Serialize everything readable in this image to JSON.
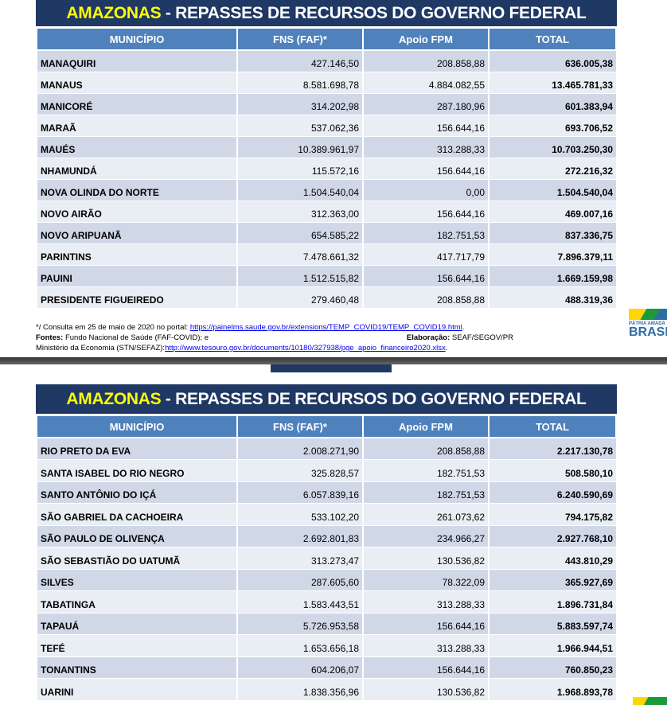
{
  "title_state": "AMAZONAS",
  "title_rest": " - REPASSES DE RECURSOS DO GOVERNO FEDERAL",
  "columns": [
    "MUNICÍPIO",
    "FNS (FAF)*",
    "Apoio FPM",
    "TOTAL"
  ],
  "table1": [
    [
      "MANAQUIRI",
      "427.146,50",
      "208.858,88",
      "636.005,38"
    ],
    [
      "MANAUS",
      "8.581.698,78",
      "4.884.082,55",
      "13.465.781,33"
    ],
    [
      "MANICORÉ",
      "314.202,98",
      "287.180,96",
      "601.383,94"
    ],
    [
      "MARAÃ",
      "537.062,36",
      "156.644,16",
      "693.706,52"
    ],
    [
      "MAUÉS",
      "10.389.961,97",
      "313.288,33",
      "10.703.250,30"
    ],
    [
      "NHAMUNDÁ",
      "115.572,16",
      "156.644,16",
      "272.216,32"
    ],
    [
      "NOVA OLINDA DO NORTE",
      "1.504.540,04",
      "0,00",
      "1.504.540,04"
    ],
    [
      "NOVO AIRÃO",
      "312.363,00",
      "156.644,16",
      "469.007,16"
    ],
    [
      "NOVO ARIPUANÃ",
      "654.585,22",
      "182.751,53",
      "837.336,75"
    ],
    [
      "PARINTINS",
      "7.478.661,32",
      "417.717,79",
      "7.896.379,11"
    ],
    [
      "PAUINI",
      "1.512.515,82",
      "156.644,16",
      "1.669.159,98"
    ],
    [
      "PRESIDENTE FIGUEIREDO",
      "279.460,48",
      "208.858,88",
      "488.319,36"
    ]
  ],
  "table2": [
    [
      "RIO PRETO DA EVA",
      "2.008.271,90",
      "208.858,88",
      "2.217.130,78"
    ],
    [
      "SANTA ISABEL DO RIO NEGRO",
      "325.828,57",
      "182.751,53",
      "508.580,10"
    ],
    [
      "SANTO ANTÔNIO DO IÇÁ",
      "6.057.839,16",
      "182.751,53",
      "6.240.590,69"
    ],
    [
      "SÃO GABRIEL DA CACHOEIRA",
      "533.102,20",
      "261.073,62",
      "794.175,82"
    ],
    [
      "SÃO PAULO DE OLIVENÇA",
      "2.692.801,83",
      "234.966,27",
      "2.927.768,10"
    ],
    [
      "SÃO SEBASTIÃO DO UATUMÃ",
      "313.273,47",
      "130.536,82",
      "443.810,29"
    ],
    [
      "SILVES",
      "287.605,60",
      "78.322,09",
      "365.927,69"
    ],
    [
      "TABATINGA",
      "1.583.443,51",
      "313.288,33",
      "1.896.731,84"
    ],
    [
      "TAPAUÁ",
      "5.726.953,58",
      "156.644,16",
      "5.883.597,74"
    ],
    [
      "TEFÉ",
      "1.653.656,18",
      "313.288,33",
      "1.966.944,51"
    ],
    [
      "TONANTINS",
      "604.206,07",
      "156.644,16",
      "760.850,23"
    ],
    [
      "UARINI",
      "1.838.356,96",
      "130.536,82",
      "1.968.893,78"
    ]
  ],
  "notes": {
    "line1_text": "*/ Consulta em 25 de maio de 2020 no portal: ",
    "line1_link": "https://painelms.saude.gov.br/extensions/TEMP_COVID19/TEMP_COVID19.html",
    "fontes_label": "Fontes:",
    "fontes_text": " Fundo Nacional de Saúde (FAF-COVID); e",
    "elab_label": "Elaboração:",
    "elab_text": " SEAF/SEGOV/PR",
    "line3_text": "Ministério da Economia (STN/SEFAZ):",
    "line3_link": "http://www.tesouro.gov.br/documents/10180/327938/pge_apoio_financeiro2020.xlsx"
  },
  "logo": {
    "small": "PÁTRIA AMADA",
    "big": "BRASIL"
  }
}
